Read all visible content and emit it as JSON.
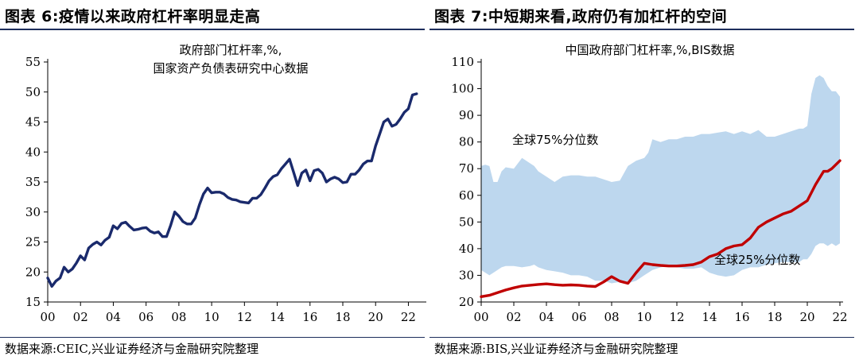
{
  "left_panel": {
    "figure_title": "图表 6:疫情以来政府杠杆率明显走高",
    "source": "数据来源:CEIC,兴业证券经济与金融研究院整理"
  },
  "right_panel": {
    "figure_title": "图表 7:中短期来看,政府仍有加杠杆的空间",
    "source": "数据来源:BIS,兴业证券经济与金融研究院整理"
  },
  "chart_data": [
    {
      "type": "line",
      "title": "政府部门杠杆率,%,",
      "subtitle": "国家资产负债表研究中心数据",
      "xlabel": "",
      "ylabel": "",
      "ylim": [
        15,
        55
      ],
      "yticks": [
        15,
        20,
        25,
        30,
        35,
        40,
        45,
        50,
        55
      ],
      "xlim": [
        2000,
        2022.9
      ],
      "xticks": [
        2000,
        2002,
        2004,
        2006,
        2008,
        2010,
        2012,
        2014,
        2016,
        2018,
        2020,
        2022
      ],
      "xtick_labels": [
        "00",
        "02",
        "04",
        "06",
        "08",
        "10",
        "12",
        "14",
        "16",
        "18",
        "20",
        "22"
      ],
      "grid": false,
      "legend": "none",
      "series": [
        {
          "color": "#1a2a6c",
          "x": [
            2000.0,
            2000.25,
            2000.5,
            2000.75,
            2001.0,
            2001.25,
            2001.5,
            2001.75,
            2002.0,
            2002.25,
            2002.5,
            2002.75,
            2003.0,
            2003.25,
            2003.5,
            2003.75,
            2004.0,
            2004.25,
            2004.5,
            2004.75,
            2005.0,
            2005.25,
            2005.5,
            2005.75,
            2006.0,
            2006.25,
            2006.5,
            2006.75,
            2007.0,
            2007.25,
            2007.5,
            2007.75,
            2008.0,
            2008.25,
            2008.5,
            2008.75,
            2009.0,
            2009.25,
            2009.5,
            2009.75,
            2010.0,
            2010.25,
            2010.5,
            2010.75,
            2011.0,
            2011.25,
            2011.5,
            2011.75,
            2012.0,
            2012.25,
            2012.5,
            2012.75,
            2013.0,
            2013.25,
            2013.5,
            2013.75,
            2014.0,
            2014.25,
            2014.5,
            2014.75,
            2015.0,
            2015.25,
            2015.5,
            2015.75,
            2016.0,
            2016.25,
            2016.5,
            2016.75,
            2017.0,
            2017.25,
            2017.5,
            2017.75,
            2018.0,
            2018.25,
            2018.5,
            2018.75,
            2019.0,
            2019.25,
            2019.5,
            2019.75,
            2020.0,
            2020.25,
            2020.5,
            2020.75,
            2021.0,
            2021.25,
            2021.5,
            2021.75,
            2022.0,
            2022.25,
            2022.5
          ],
          "values": [
            19.0,
            17.6,
            18.5,
            19.0,
            20.8,
            20.0,
            20.5,
            21.5,
            22.7,
            22.0,
            24.0,
            24.6,
            25.0,
            24.5,
            25.3,
            25.8,
            27.7,
            27.2,
            28.1,
            28.3,
            27.6,
            27.0,
            27.1,
            27.3,
            27.4,
            26.8,
            26.5,
            26.7,
            25.9,
            25.9,
            27.8,
            30.0,
            29.3,
            28.4,
            28.0,
            28.0,
            29.0,
            31.2,
            33.0,
            34.0,
            33.2,
            33.3,
            33.3,
            33.0,
            32.4,
            32.1,
            32.0,
            31.7,
            31.6,
            31.5,
            32.3,
            32.3,
            32.9,
            34.0,
            35.2,
            35.9,
            36.2,
            37.2,
            38.0,
            38.8,
            36.6,
            34.4,
            36.5,
            37.0,
            35.2,
            36.9,
            37.1,
            36.5,
            35.0,
            35.5,
            35.8,
            35.5,
            34.9,
            35.0,
            36.3,
            36.3,
            37.0,
            38.0,
            38.5,
            38.5,
            41.0,
            43.0,
            45.0,
            45.5,
            44.3,
            44.6,
            45.5,
            46.6,
            47.2,
            49.5,
            49.7
          ]
        }
      ]
    },
    {
      "type": "area",
      "title": "中国政府部门杠杆率,%,BIS数据",
      "xlabel": "",
      "ylabel": "",
      "ylim": [
        20,
        110
      ],
      "yticks": [
        20,
        30,
        40,
        50,
        60,
        70,
        80,
        90,
        100,
        110
      ],
      "xlim": [
        2000,
        2022
      ],
      "xticks": [
        2000,
        2002,
        2004,
        2006,
        2008,
        2010,
        2012,
        2014,
        2016,
        2018,
        2020,
        2022
      ],
      "xtick_labels": [
        "00",
        "02",
        "04",
        "06",
        "08",
        "10",
        "12",
        "14",
        "16",
        "18",
        "20",
        "22"
      ],
      "grid": false,
      "legend": "none",
      "annotations": [
        "全球75%分位数",
        "全球25%分位数"
      ],
      "band": {
        "color": "#bdd7ee",
        "x": [
          2000.0,
          2000.25,
          2000.5,
          2000.75,
          2001.0,
          2001.25,
          2001.5,
          2002.0,
          2002.5,
          2003.0,
          2003.25,
          2003.5,
          2004.0,
          2004.5,
          2005.0,
          2005.5,
          2006.0,
          2006.5,
          2007.0,
          2007.5,
          2008.0,
          2008.5,
          2009.0,
          2009.5,
          2010.0,
          2010.25,
          2010.5,
          2011.0,
          2011.5,
          2012.0,
          2012.5,
          2013.0,
          2013.5,
          2014.0,
          2014.5,
          2015.0,
          2015.5,
          2016.0,
          2016.5,
          2017.0,
          2017.5,
          2018.0,
          2018.5,
          2019.0,
          2019.5,
          2019.75,
          2020.0,
          2020.25,
          2020.5,
          2020.75,
          2021.0,
          2021.25,
          2021.5,
          2021.75,
          2022.0
        ],
        "upper": [
          71.0,
          71.5,
          71.0,
          65.0,
          65.0,
          69.0,
          70.5,
          70.0,
          74.0,
          72.0,
          71.0,
          69.0,
          67.0,
          65.0,
          67.0,
          67.5,
          67.5,
          67.0,
          67.0,
          66.0,
          65.0,
          65.5,
          71.0,
          73.0,
          74.0,
          76.0,
          81.0,
          80.0,
          81.0,
          81.0,
          82.0,
          82.0,
          83.0,
          83.0,
          83.5,
          84.0,
          83.0,
          84.0,
          83.0,
          84.5,
          82.0,
          82.0,
          83.0,
          84.0,
          85.0,
          85.0,
          86.0,
          98.0,
          104.0,
          105.0,
          104.0,
          101.0,
          99.0,
          99.0,
          97.0
        ],
        "lower": [
          32.0,
          31.0,
          30.0,
          31.0,
          32.0,
          33.0,
          33.5,
          33.5,
          33.0,
          33.5,
          34.0,
          33.0,
          32.0,
          31.5,
          31.0,
          30.0,
          30.0,
          29.5,
          28.0,
          28.0,
          27.0,
          27.5,
          27.0,
          28.0,
          30.0,
          31.0,
          32.0,
          33.0,
          33.5,
          33.0,
          32.5,
          32.5,
          33.0,
          31.0,
          30.0,
          29.5,
          30.0,
          32.0,
          33.0,
          33.0,
          34.0,
          34.5,
          35.0,
          35.0,
          35.0,
          36.0,
          36.0,
          38.0,
          41.0,
          42.0,
          42.0,
          41.0,
          42.0,
          41.0,
          42.0
        ]
      },
      "series": [
        {
          "color": "#c00000",
          "x": [
            2000.0,
            2000.5,
            2001.0,
            2001.5,
            2002.0,
            2002.5,
            2003.0,
            2003.5,
            2004.0,
            2004.5,
            2005.0,
            2005.5,
            2006.0,
            2006.5,
            2007.0,
            2007.5,
            2008.0,
            2008.5,
            2009.0,
            2009.5,
            2010.0,
            2010.5,
            2011.0,
            2011.5,
            2012.0,
            2012.5,
            2013.0,
            2013.5,
            2014.0,
            2014.5,
            2015.0,
            2015.5,
            2016.0,
            2016.5,
            2017.0,
            2017.5,
            2018.0,
            2018.5,
            2019.0,
            2019.5,
            2020.0,
            2020.5,
            2021.0,
            2021.25,
            2021.5,
            2021.75,
            2022.0
          ],
          "values": [
            22.0,
            22.5,
            23.5,
            24.5,
            25.3,
            26.0,
            26.3,
            26.6,
            26.8,
            26.5,
            26.3,
            26.4,
            26.3,
            26.0,
            25.8,
            27.5,
            29.5,
            27.8,
            27.0,
            31.0,
            34.5,
            34.0,
            33.7,
            33.5,
            33.5,
            33.7,
            34.0,
            35.0,
            37.0,
            38.0,
            40.0,
            41.0,
            41.5,
            44.0,
            48.0,
            50.0,
            51.5,
            53.0,
            54.0,
            56.0,
            58.0,
            64.0,
            69.0,
            69.0,
            70.0,
            71.5,
            73.0
          ]
        }
      ]
    }
  ]
}
